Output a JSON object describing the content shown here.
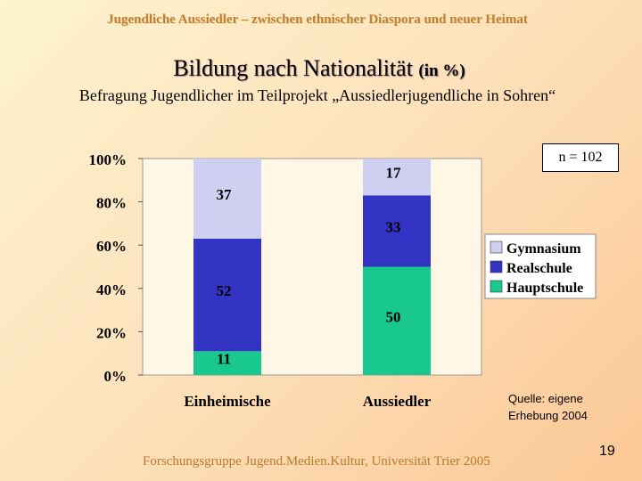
{
  "header": "Jugendliche Aussiedler – zwischen ethnischer Diaspora und neuer Heimat",
  "title": "Bildung nach Nationalität",
  "title_unit": "(in %)",
  "subtitle": "Befragung Jugendlicher im Teilprojekt „Aussiedlerjugendliche in Sohren“",
  "sample_size": "n = 102",
  "source": {
    "line1": "Quelle: eigene",
    "line2": "Erhebung 2004"
  },
  "footer": "Forschungsgruppe Jugend.Medien.Kultur, Universität Trier 2005",
  "page_number": "19",
  "chart_data": {
    "type": "bar",
    "stacked": true,
    "categories": [
      "Einheimische",
      "Aussiedler"
    ],
    "series": [
      {
        "name": "Hauptschule",
        "values": [
          11,
          50
        ],
        "color": "#19c88e"
      },
      {
        "name": "Realschule",
        "values": [
          52,
          33
        ],
        "color": "#3434c4"
      },
      {
        "name": "Gymnasium",
        "values": [
          37,
          17
        ],
        "color": "#cfcff2"
      }
    ],
    "yticks": [
      "0%",
      "20%",
      "40%",
      "60%",
      "80%",
      "100%"
    ],
    "ylim": [
      0,
      100
    ],
    "legend_order": [
      "Gymnasium",
      "Realschule",
      "Hauptschule"
    ],
    "legend_position": "right",
    "grid": false
  }
}
